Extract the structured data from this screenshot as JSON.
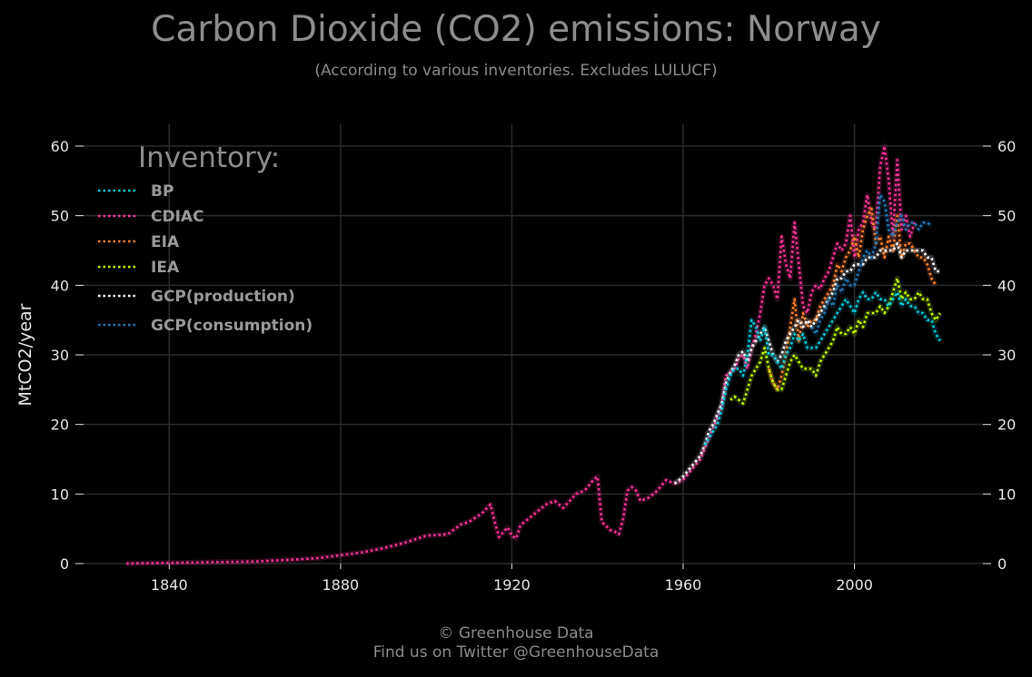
{
  "title": "Carbon Dioxide (CO2) emissions: Norway",
  "subtitle": "(According to various inventories. Excludes LULUCF)",
  "footer": {
    "line1": "© Greenhouse Data",
    "line2": "Find us on Twitter @GreenhouseData"
  },
  "chart_data": {
    "type": "line",
    "ylabel": "MtCO2/year",
    "xlim": [
      1820,
      2030
    ],
    "ylim": [
      0,
      60
    ],
    "x_ticks": [
      1840,
      1880,
      1920,
      1960,
      2000
    ],
    "y_ticks": [
      0,
      10,
      20,
      30,
      40,
      50,
      60
    ],
    "grid": true,
    "legend_title": "Inventory:",
    "legend_position": "top-left",
    "colors": {
      "background": "#000000",
      "grid": "#2b2b2b",
      "text": "#e6e6e6"
    },
    "series": [
      {
        "name": "CDIAC",
        "color": "#ff3399",
        "x": [
          1830,
          1840,
          1850,
          1860,
          1870,
          1875,
          1880,
          1885,
          1890,
          1895,
          1900,
          1905,
          1908,
          1910,
          1913,
          1915,
          1916,
          1917,
          1918,
          1919,
          1920,
          1921,
          1922,
          1924,
          1926,
          1928,
          1930,
          1932,
          1935,
          1937,
          1939,
          1940,
          1941,
          1943,
          1944,
          1945,
          1946,
          1947,
          1948,
          1949,
          1950,
          1952,
          1954,
          1956,
          1958,
          1960,
          1962,
          1964,
          1965,
          1966,
          1967,
          1968,
          1969,
          1970,
          1971,
          1972,
          1973,
          1974,
          1975,
          1976,
          1977,
          1978,
          1979,
          1980,
          1981,
          1982,
          1983,
          1984,
          1985,
          1986,
          1987,
          1988,
          1989,
          1990,
          1991,
          1992,
          1993,
          1994,
          1995,
          1996,
          1997,
          1998,
          1999,
          2000,
          2001,
          2002,
          2003,
          2004,
          2005,
          2006,
          2007,
          2008,
          2009,
          2010,
          2011,
          2012,
          2013,
          2014
        ],
        "values": [
          0,
          0.1,
          0.2,
          0.3,
          0.6,
          0.8,
          1.2,
          1.6,
          2.2,
          3,
          4,
          4.2,
          5.6,
          6,
          7.2,
          8.5,
          6,
          3.8,
          4.5,
          5.2,
          4,
          3.6,
          5.5,
          6.5,
          7.5,
          8.5,
          9,
          8,
          10,
          10.5,
          12,
          12.5,
          6,
          4.8,
          4.6,
          4.2,
          6.5,
          10.5,
          11,
          10.5,
          9,
          9.5,
          10.5,
          12,
          11.5,
          12,
          13.5,
          15,
          16.5,
          18,
          19.5,
          21,
          22.5,
          27,
          27.5,
          28,
          29.5,
          30,
          28,
          31,
          33,
          36,
          40,
          41,
          40,
          38,
          47,
          43,
          41,
          49,
          43,
          37,
          36,
          39,
          40,
          39.5,
          41,
          42,
          44,
          46,
          45,
          46,
          50,
          44,
          48,
          49,
          53,
          49,
          48,
          57,
          60,
          55,
          47,
          58,
          48,
          50,
          47,
          49
        ]
      },
      {
        "name": "EIA",
        "color": "#ff7f2a",
        "x": [
          1980,
          1981,
          1982,
          1983,
          1984,
          1985,
          1986,
          1987,
          1988,
          1989,
          1990,
          1991,
          1992,
          1993,
          1994,
          1995,
          1996,
          1997,
          1998,
          1999,
          2000,
          2001,
          2002,
          2003,
          2004,
          2005,
          2006,
          2007,
          2008,
          2009,
          2010,
          2011,
          2012,
          2013,
          2014,
          2015,
          2016,
          2017,
          2018,
          2019
        ],
        "values": [
          28,
          26,
          25,
          27,
          30,
          34,
          38,
          32,
          36,
          34,
          35,
          35,
          37,
          38,
          39,
          40,
          43,
          42,
          44,
          45,
          47,
          44,
          48,
          50,
          51,
          46,
          47,
          44,
          47,
          45,
          50,
          44,
          46,
          46,
          45,
          44,
          44,
          43,
          41,
          40
        ]
      },
      {
        "name": "IEA",
        "color": "#bfff00",
        "x": [
          1971,
          1972,
          1973,
          1974,
          1975,
          1976,
          1977,
          1978,
          1979,
          1980,
          1981,
          1982,
          1983,
          1984,
          1985,
          1986,
          1987,
          1988,
          1989,
          1990,
          1991,
          1992,
          1993,
          1994,
          1995,
          1996,
          1997,
          1998,
          1999,
          2000,
          2001,
          2002,
          2003,
          2004,
          2005,
          2006,
          2007,
          2008,
          2009,
          2010,
          2011,
          2012,
          2013,
          2014,
          2015,
          2016,
          2017,
          2018,
          2019,
          2020
        ],
        "values": [
          23.5,
          24,
          23.5,
          23,
          25,
          27,
          28,
          29,
          31,
          28,
          26,
          25,
          25,
          27,
          29,
          30,
          29,
          28,
          28,
          28,
          27,
          29,
          30,
          31,
          32,
          34,
          33,
          33,
          34,
          33,
          35,
          34,
          36,
          36,
          36,
          37,
          36,
          37,
          39,
          41,
          38,
          39,
          38,
          38,
          39,
          38,
          38,
          36,
          35,
          36
        ]
      },
      {
        "name": "GCP(production)",
        "color": "#ffffff",
        "x": [
          1958,
          1960,
          1962,
          1964,
          1965,
          1966,
          1967,
          1968,
          1969,
          1970,
          1971,
          1972,
          1973,
          1974,
          1975,
          1976,
          1977,
          1978,
          1979,
          1980,
          1981,
          1982,
          1983,
          1984,
          1985,
          1986,
          1987,
          1988,
          1989,
          1990,
          1991,
          1992,
          1993,
          1994,
          1995,
          1996,
          1997,
          1998,
          1999,
          2000,
          2001,
          2002,
          2003,
          2004,
          2005,
          2006,
          2007,
          2008,
          2009,
          2010,
          2011,
          2012,
          2013,
          2014,
          2015,
          2016,
          2017,
          2018,
          2019,
          2020
        ],
        "values": [
          11.5,
          12.5,
          14,
          15.5,
          17,
          19,
          20,
          21.5,
          23,
          26,
          27.5,
          28.5,
          30,
          30.5,
          29,
          31,
          32,
          33,
          34,
          32,
          30,
          29,
          30,
          32,
          33,
          34,
          35,
          34,
          35,
          34,
          35,
          36,
          37,
          38,
          39,
          41,
          41,
          42,
          42,
          43,
          43,
          43,
          44,
          44,
          44,
          45,
          45,
          45,
          45,
          46,
          44,
          45,
          45,
          45,
          45,
          45,
          44,
          44,
          42,
          42
        ]
      },
      {
        "name": "BP",
        "color": "#00ccdd",
        "x": [
          1965,
          1966,
          1967,
          1968,
          1969,
          1970,
          1971,
          1972,
          1973,
          1974,
          1975,
          1976,
          1977,
          1978,
          1979,
          1980,
          1981,
          1982,
          1983,
          1984,
          1985,
          1986,
          1987,
          1988,
          1989,
          1990,
          1991,
          1992,
          1993,
          1994,
          1995,
          1996,
          1997,
          1998,
          1999,
          2000,
          2001,
          2002,
          2003,
          2004,
          2005,
          2006,
          2007,
          2008,
          2009,
          2010,
          2011,
          2012,
          2013,
          2014,
          2015,
          2016,
          2017,
          2018,
          2019,
          2020
        ],
        "values": [
          17,
          18,
          19,
          20,
          22,
          25,
          27,
          28,
          28,
          27,
          30,
          35,
          34,
          32,
          34,
          30,
          30,
          29,
          28,
          30,
          31,
          33,
          32,
          33,
          31,
          31,
          31,
          32,
          33,
          34,
          35,
          36,
          37,
          38,
          37,
          36,
          38,
          39,
          38,
          38,
          39,
          38,
          38,
          37,
          38,
          39,
          37,
          38,
          37,
          37,
          36,
          36,
          35,
          35,
          33,
          32
        ]
      },
      {
        "name": "GCP(consumption)",
        "color": "#1f77b4",
        "x": [
          1990,
          1991,
          1992,
          1993,
          1994,
          1995,
          1996,
          1997,
          1998,
          1999,
          2000,
          2001,
          2002,
          2003,
          2004,
          2005,
          2006,
          2007,
          2008,
          2009,
          2010,
          2011,
          2012,
          2013,
          2014,
          2015,
          2016,
          2017,
          2018
        ],
        "values": [
          34,
          33,
          35,
          36,
          38,
          37,
          40,
          39,
          41,
          40,
          40,
          42,
          44,
          45,
          44,
          46,
          53,
          52,
          48,
          47,
          49,
          50,
          48,
          49,
          49,
          48,
          49,
          49,
          48.5
        ]
      }
    ],
    "legend_order": [
      "BP",
      "CDIAC",
      "EIA",
      "IEA",
      "GCP(production)",
      "GCP(consumption)"
    ]
  }
}
